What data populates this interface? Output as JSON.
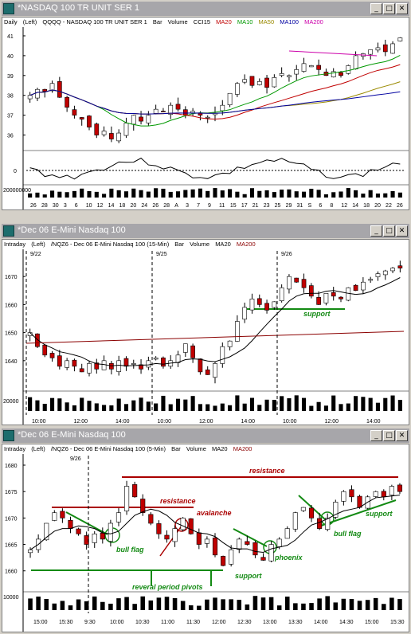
{
  "colors": {
    "ma20": "#c00000",
    "ma10": "#009900",
    "ma50": "#9a8a00",
    "ma100": "#0000a0",
    "ma200": "#cc00aa",
    "ma200_intraday": "#8b0000",
    "up": "#ffffff",
    "down": "#c00000",
    "annot_red": "#aa0000",
    "annot_green": "#138a13",
    "icon": "window-icon"
  },
  "windows": [
    {
      "title": "*NASDAQ 100 TR UNIT SER 1",
      "header": {
        "period": "Daily",
        "scale": "(Left)",
        "symbol": "QQQQ - NASDAQ 100 TR UNIT SER 1",
        "type": "Bar",
        "volume": "Volume",
        "study": "CCI15",
        "ma20": "MA20",
        "ma10": "MA10",
        "ma50": "MA50",
        "ma100": "MA100",
        "ma200": "MA200"
      },
      "y_ticks": [
        "41",
        "40",
        "39",
        "38",
        "37",
        "36"
      ],
      "cci_ticks": [
        "0"
      ],
      "vol_tick": "200000000",
      "x_ticks": [
        "26",
        "28",
        "30",
        "3",
        "6",
        "10",
        "12",
        "14",
        "18",
        "20",
        "24",
        "26",
        "28",
        "A",
        "3",
        "7",
        "9",
        "11",
        "15",
        "17",
        "21",
        "23",
        "25",
        "29",
        "31",
        "S",
        "6",
        "8",
        "12",
        "14",
        "18",
        "20",
        "22",
        "26"
      ]
    },
    {
      "title": "*Dec 06  E-Mini Nasdaq 100",
      "header": {
        "period": "Intraday",
        "scale": "(Left)",
        "symbol": "/NQZ6 - Dec 06  E-Mini Nasdaq 100 (15-Min)",
        "type": "Bar",
        "volume": "Volume",
        "ma20": "MA20",
        "ma200": "MA200"
      },
      "y_ticks": [
        "1670",
        "1660",
        "1650",
        "1640"
      ],
      "vol_tick": "20000",
      "date_labels": [
        "9/22",
        "9/25",
        "9/26"
      ],
      "x_ticks": [
        "10:00",
        "12:00",
        "14:00",
        "10:00",
        "12:00",
        "14:00",
        "10:00",
        "12:00",
        "14:00"
      ],
      "annotations": {
        "support": "support"
      }
    },
    {
      "title": "*Dec 06  E-Mini Nasdaq 100",
      "header": {
        "period": "Intraday",
        "scale": "(Left)",
        "symbol": "/NQZ6 - Dec 06  E-Mini Nasdaq 100 (5-Min)",
        "type": "Bar",
        "volume": "Volume",
        "ma20": "MA20",
        "ma200": "MA200"
      },
      "y_ticks": [
        "1680",
        "1675",
        "1670",
        "1665",
        "1660"
      ],
      "vol_tick": "10000",
      "date_labels": [
        "9/26"
      ],
      "x_ticks": [
        "15:00",
        "15:30",
        "9:30",
        "10:00",
        "10:30",
        "11:00",
        "11:30",
        "12:00",
        "12:30",
        "13:00",
        "13:30",
        "14:00",
        "14:30",
        "15:00",
        "15:30"
      ],
      "annotations": {
        "resistance_top": "resistance",
        "resistance_mid": "resistance",
        "avalanche": "avalanche",
        "bull_flag_1": "bull flag",
        "bull_flag_2": "bull flag",
        "phoenix": "phoenix",
        "support_mid": "support",
        "support_right": "support",
        "reversal": "reveral period pivots"
      }
    }
  ],
  "chart_data": [
    {
      "type": "candlestick",
      "title": "NASDAQ 100 TR UNIT SER 1",
      "symbol": "QQQQ",
      "period": "Daily",
      "ylim": [
        35.5,
        41.2
      ],
      "closes": [
        38.0,
        38.3,
        38.2,
        38.6,
        37.9,
        37.4,
        37.0,
        36.8,
        36.4,
        36.0,
        36.2,
        35.8,
        36.1,
        36.6,
        37.0,
        36.7,
        37.0,
        37.3,
        37.2,
        37.5,
        37.3,
        37.0,
        37.2,
        37.0,
        36.9,
        37.1,
        37.5,
        38.1,
        38.6,
        38.8,
        38.5,
        38.7,
        38.4,
        38.9,
        39.1,
        39.0,
        39.3,
        39.6,
        39.5,
        39.3,
        39.0,
        39.2,
        39.0,
        39.5,
        40.0,
        40.1,
        40.3,
        40.4,
        40.2,
        40.6,
        40.9
      ]
    },
    {
      "type": "candlestick",
      "title": "Dec 06 E-Mini Nasdaq 100",
      "symbol": "/NQZ6",
      "period": "15-Min",
      "ylim": [
        1632,
        1678
      ],
      "closes": [
        1650,
        1645,
        1642,
        1641,
        1638,
        1640,
        1638,
        1636,
        1639,
        1637,
        1640,
        1637,
        1640,
        1638,
        1639,
        1637,
        1640,
        1641,
        1638,
        1640,
        1642,
        1646,
        1641,
        1636,
        1635,
        1639,
        1645,
        1647,
        1654,
        1659,
        1662,
        1660,
        1658,
        1661,
        1666,
        1670,
        1668,
        1666,
        1663,
        1660,
        1664,
        1663,
        1662,
        1666,
        1665,
        1668,
        1669,
        1671,
        1672,
        1673,
        1673
      ]
    },
    {
      "type": "candlestick",
      "title": "Dec 06 E-Mini Nasdaq 100",
      "symbol": "/NQZ6",
      "period": "5-Min",
      "ylim": [
        1658,
        1680
      ],
      "closes": [
        1664,
        1666,
        1669,
        1671,
        1670,
        1668,
        1667,
        1665,
        1667,
        1666,
        1669,
        1671,
        1676,
        1674,
        1671,
        1669,
        1667,
        1666,
        1668,
        1670,
        1667,
        1665,
        1666,
        1663,
        1661,
        1664,
        1666,
        1665,
        1663,
        1662,
        1665,
        1666,
        1668,
        1671,
        1672,
        1670,
        1668,
        1670,
        1673,
        1675,
        1674,
        1672,
        1674,
        1675,
        1674,
        1676,
        1675
      ]
    }
  ]
}
